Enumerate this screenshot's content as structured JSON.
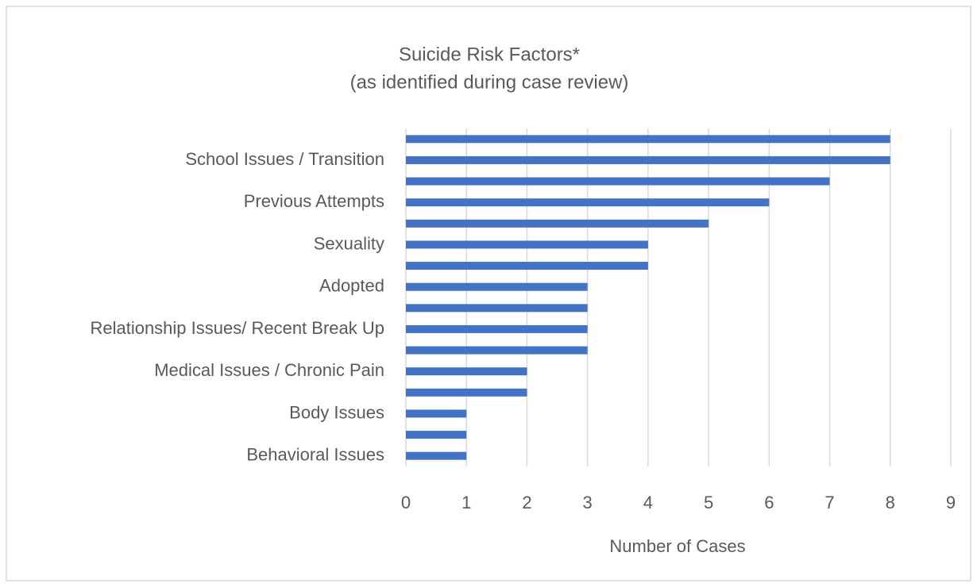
{
  "chart_data": {
    "type": "bar",
    "orientation": "horizontal",
    "title": "Suicide Risk Factors*",
    "subtitle": "(as identified during case review)",
    "x_label": "Number of Cases",
    "categories": [
      null,
      "School Issues / Transition",
      null,
      "Previous Attempts",
      null,
      "Sexuality",
      null,
      "Adopted",
      null,
      "Relationship Issues/ Recent Break Up",
      null,
      "Medical Issues / Chronic Pain",
      null,
      "Body Issues",
      null,
      "Behavioral Issues"
    ],
    "values": [
      8,
      8,
      7,
      6,
      5,
      4,
      4,
      3,
      3,
      3,
      3,
      2,
      2,
      1,
      1,
      1
    ],
    "color": "#4472c4",
    "xlim": [
      0,
      9
    ],
    "xticks": [
      0,
      1,
      2,
      3,
      4,
      5,
      6,
      7,
      8,
      9
    ],
    "grid": true
  }
}
